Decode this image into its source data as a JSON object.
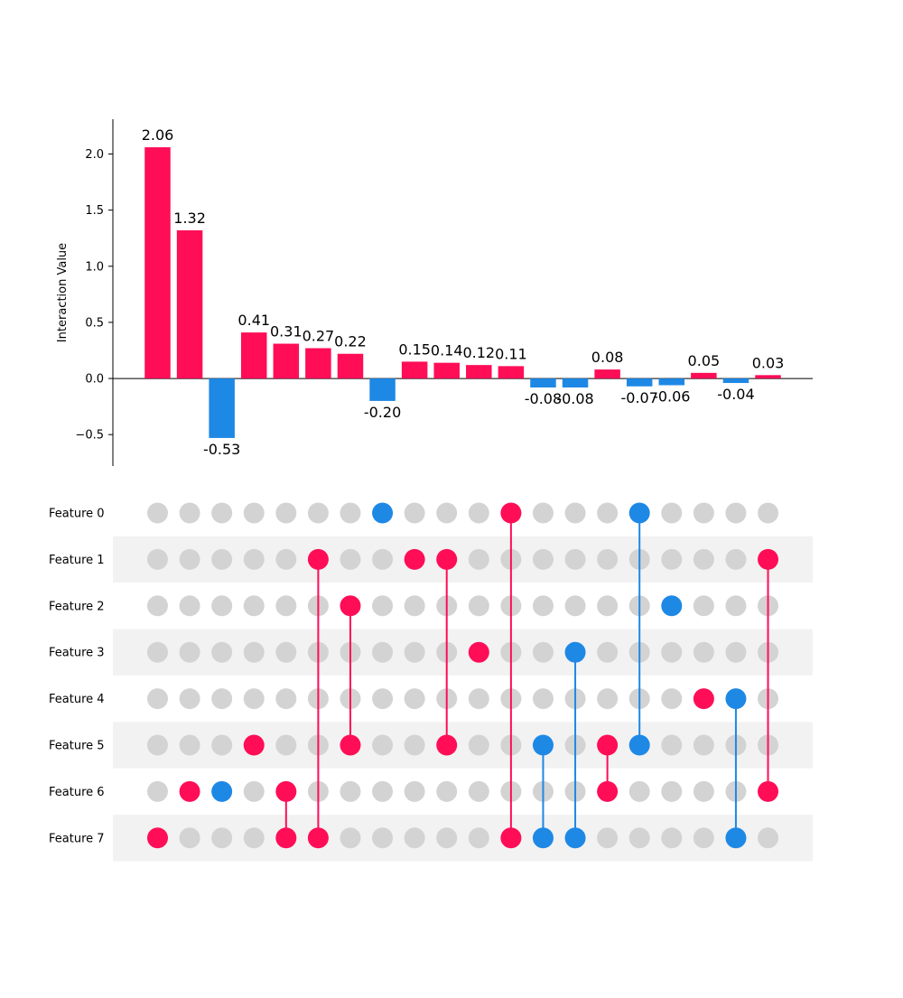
{
  "chart_data": {
    "type": "bar",
    "ylabel": "Interaction Value",
    "ylim": [
      -0.78,
      2.31
    ],
    "yticks": [
      -0.5,
      0.0,
      0.5,
      1.0,
      1.5,
      2.0
    ],
    "ytick_labels": [
      "−0.5",
      "0.0",
      "0.5",
      "1.0",
      "1.5",
      "2.0"
    ],
    "values": [
      2.06,
      1.32,
      -0.53,
      0.41,
      0.31,
      0.27,
      0.22,
      -0.2,
      0.15,
      0.14,
      0.12,
      0.11,
      -0.08,
      -0.08,
      0.08,
      -0.07,
      -0.06,
      0.05,
      -0.04,
      0.03
    ],
    "value_labels": [
      "2.06",
      "1.32",
      "-0.53",
      "0.41",
      "0.31",
      "0.27",
      "0.22",
      "-0.20",
      "0.15",
      "0.14",
      "0.12",
      "0.11",
      "-0.08",
      "-0.08",
      "0.08",
      "-0.07",
      "-0.06",
      "0.05",
      "-0.04",
      "0.03"
    ],
    "features": [
      "Feature 0",
      "Feature 1",
      "Feature 2",
      "Feature 3",
      "Feature 4",
      "Feature 5",
      "Feature 6",
      "Feature 7"
    ],
    "interactions": [
      [
        7
      ],
      [
        6
      ],
      [
        6
      ],
      [
        5
      ],
      [
        6,
        7
      ],
      [
        1,
        7
      ],
      [
        2,
        5
      ],
      [
        0
      ],
      [
        1
      ],
      [
        1,
        5
      ],
      [
        3
      ],
      [
        0,
        7
      ],
      [
        5,
        7
      ],
      [
        3,
        7
      ],
      [
        5,
        6
      ],
      [
        0,
        5
      ],
      [
        2
      ],
      [
        4
      ],
      [
        4,
        7
      ],
      [
        1,
        6
      ]
    ],
    "colors": {
      "positive": "#ff0d57",
      "negative": "#1e88e5",
      "inactive": "#d3d3d3",
      "band": "#f2f2f2"
    }
  }
}
